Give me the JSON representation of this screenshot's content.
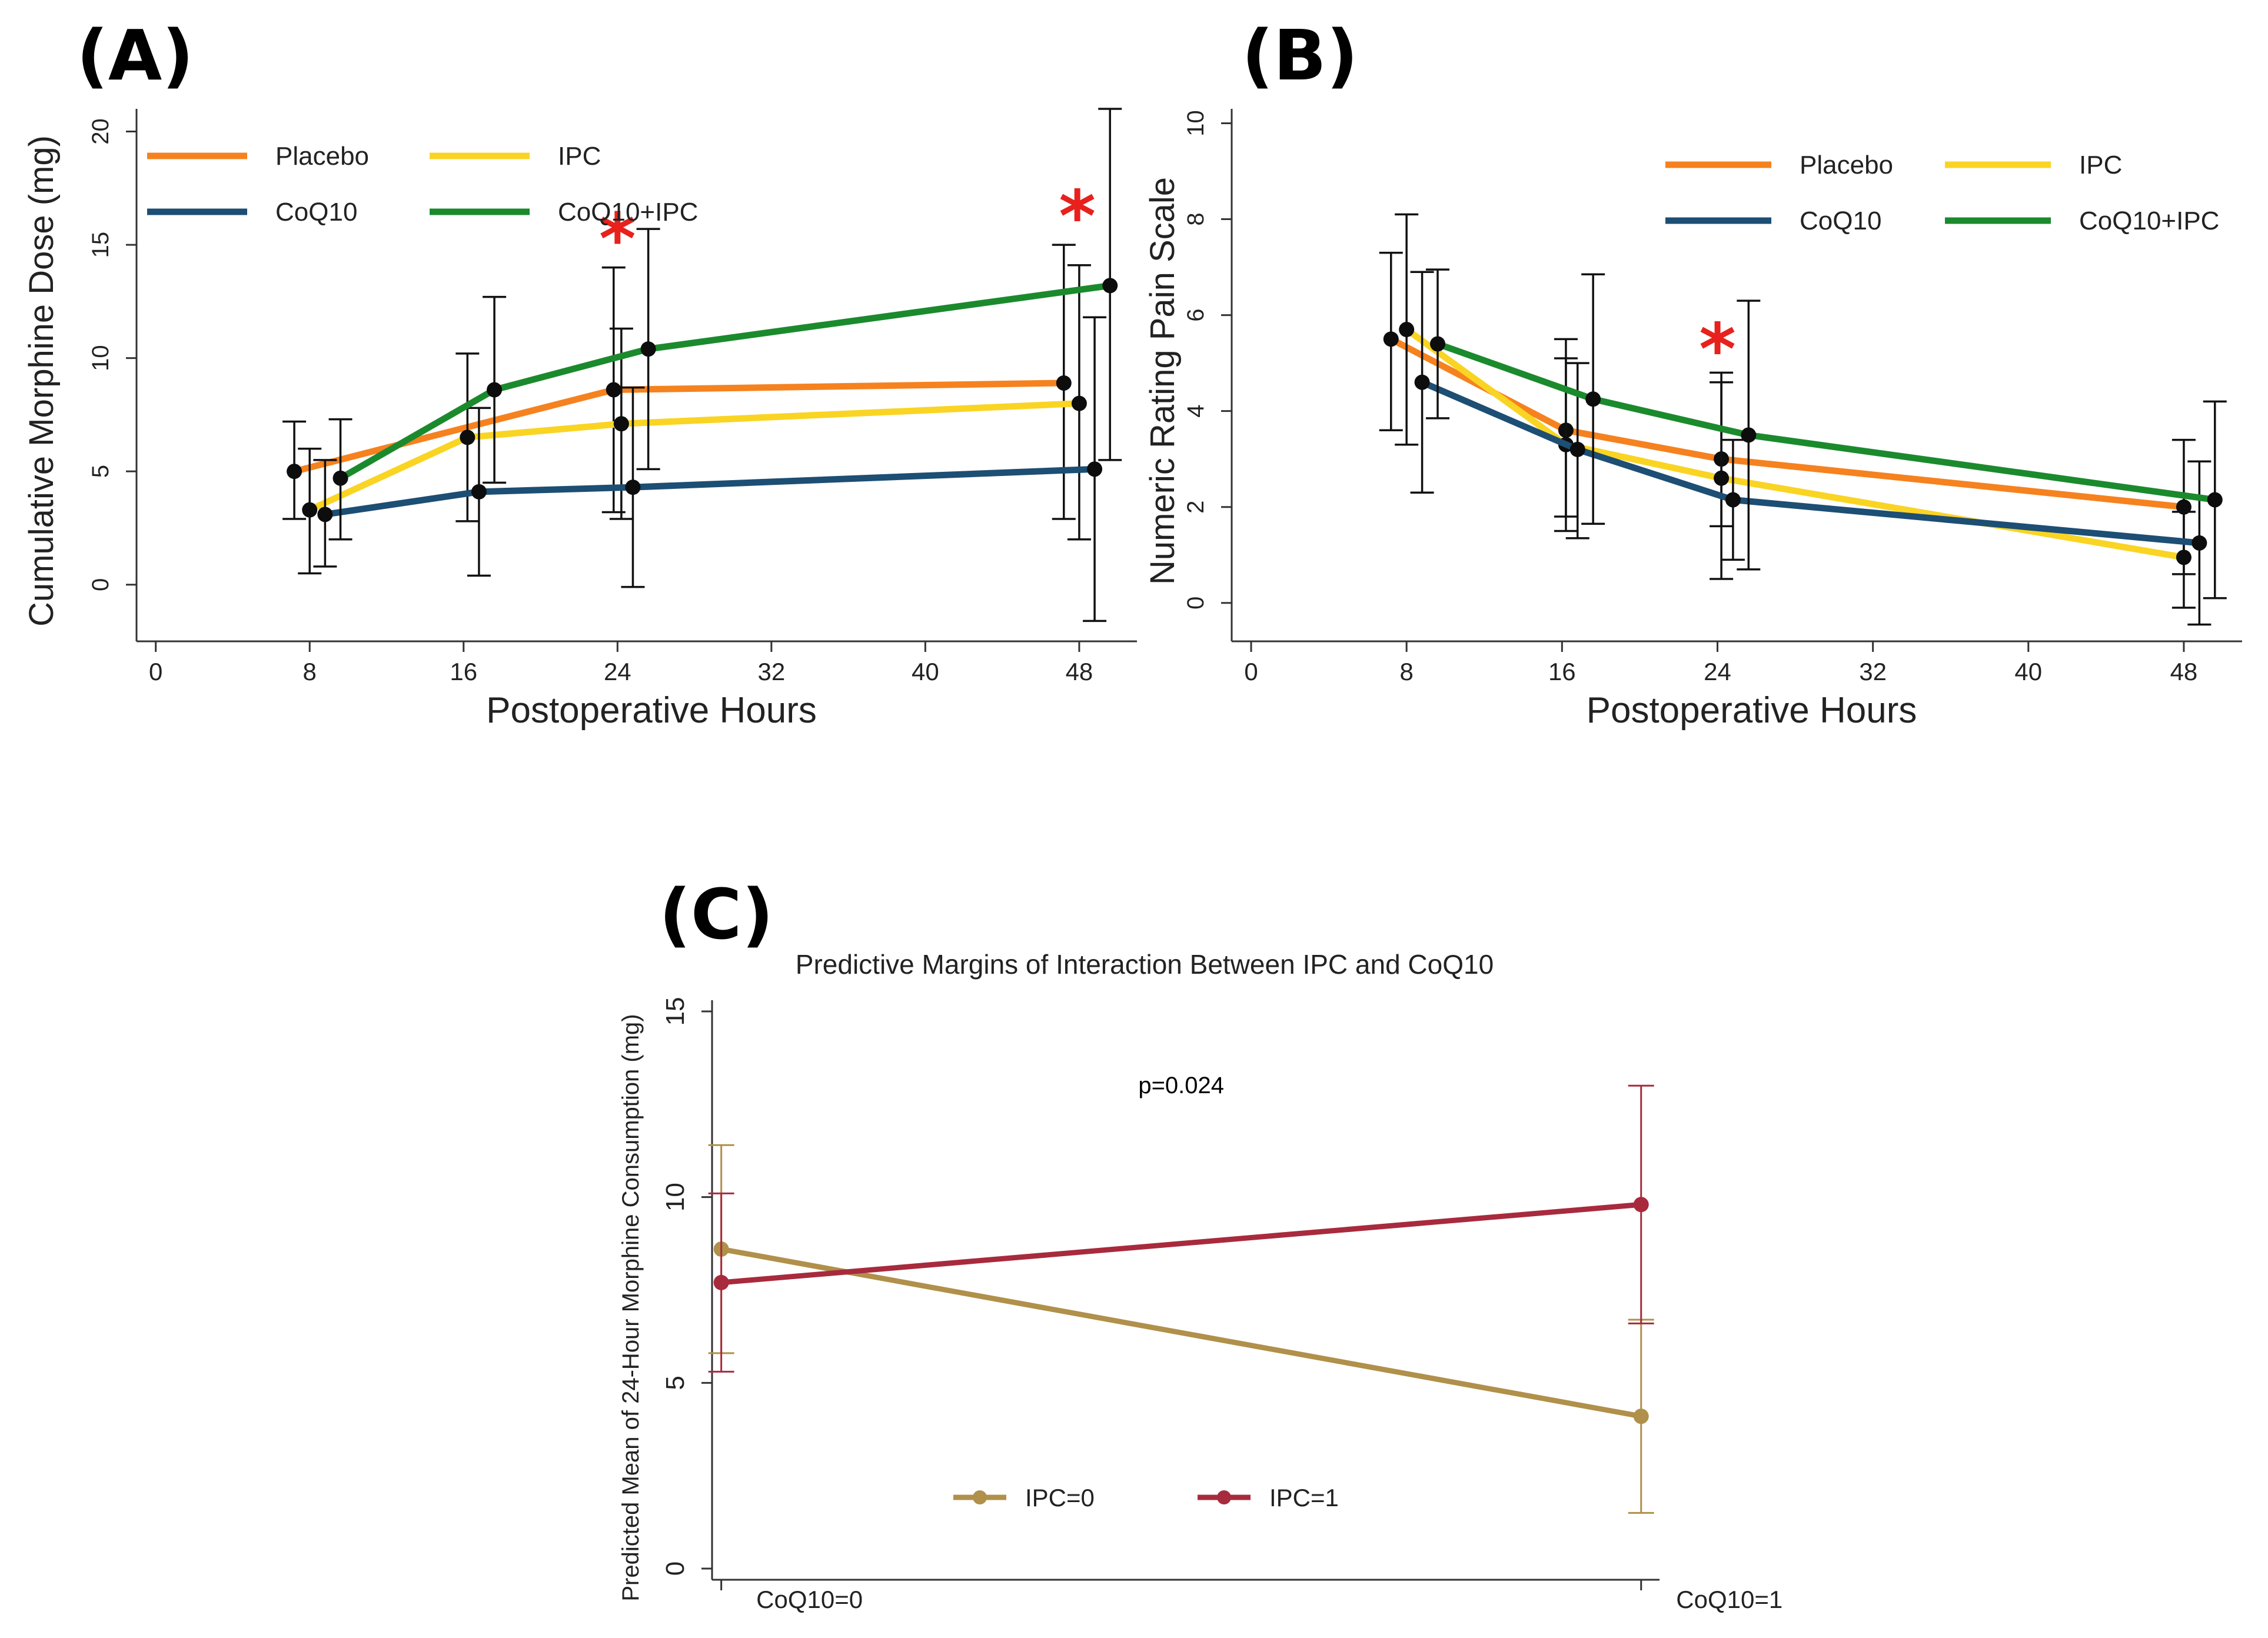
{
  "chart_data": [
    {
      "panel": "(A)",
      "type": "line",
      "title": "",
      "xlabel": "Postoperative Hours",
      "ylabel": "Cumulative Morphine Dose (mg)",
      "xlim": [
        -1,
        51
      ],
      "ylim": [
        -2.5,
        21
      ],
      "xticks": [
        0,
        8,
        16,
        24,
        32,
        40,
        48
      ],
      "xtick_labels": [
        "0",
        "8",
        "16",
        "24",
        "32",
        "40",
        "48"
      ],
      "yticks": [
        0,
        5,
        10,
        15,
        20
      ],
      "ytick_labels": [
        "0",
        "5",
        "10",
        "15",
        "20"
      ],
      "legend": "top-left",
      "legend_columns": 2,
      "series": [
        {
          "name": "Placebo",
          "color": "#f5821f",
          "x": [
            7.2,
            23.8,
            47.2
          ],
          "y": [
            5.0,
            8.6,
            8.9
          ],
          "err_low": [
            2.9,
            3.2,
            2.9
          ],
          "err_high": [
            7.2,
            14.0,
            15.0
          ]
        },
        {
          "name": "IPC",
          "color": "#f9d423",
          "x": [
            8.0,
            16.2,
            24.2,
            48.0
          ],
          "y": [
            3.3,
            6.5,
            7.1,
            8.0
          ],
          "err_low": [
            0.5,
            2.8,
            2.9,
            2.0
          ],
          "err_high": [
            6.0,
            10.2,
            11.3,
            14.1
          ]
        },
        {
          "name": "CoQ10",
          "color": "#1d4e74",
          "x": [
            8.8,
            16.8,
            24.8,
            48.8
          ],
          "y": [
            3.1,
            4.1,
            4.3,
            5.1
          ],
          "err_low": [
            0.8,
            0.4,
            -0.1,
            -1.6
          ],
          "err_high": [
            5.5,
            7.8,
            8.7,
            11.8
          ]
        },
        {
          "name": "CoQ10+IPC",
          "color": "#1b8a2d",
          "x": [
            9.6,
            17.6,
            25.6,
            49.6
          ],
          "y": [
            4.7,
            8.6,
            10.4,
            13.2
          ],
          "err_low": [
            2.0,
            4.5,
            5.1,
            5.5
          ],
          "err_high": [
            7.3,
            12.7,
            15.7,
            21.0
          ]
        }
      ],
      "annotations": [
        {
          "text": "*",
          "x": 24.0,
          "y": 15.6,
          "color": "#e8211c"
        },
        {
          "text": "*",
          "x": 47.9,
          "y": 16.6,
          "color": "#e8211c"
        }
      ]
    },
    {
      "panel": "(B)",
      "type": "line",
      "title": "",
      "xlabel": "Postoperative Hours",
      "ylabel": "Numeric Rating Pain Scale",
      "xlim": [
        -1,
        51
      ],
      "ylim": [
        -0.8,
        10.3
      ],
      "xticks": [
        0,
        8,
        16,
        24,
        32,
        40,
        48
      ],
      "xtick_labels": [
        "0",
        "8",
        "16",
        "24",
        "32",
        "40",
        "48"
      ],
      "yticks": [
        0,
        2,
        4,
        6,
        8,
        10
      ],
      "ytick_labels": [
        "0",
        "2",
        "4",
        "6",
        "8",
        "10"
      ],
      "legend": "top-right",
      "legend_columns": 2,
      "series": [
        {
          "name": "Placebo",
          "color": "#f5821f",
          "x": [
            7.2,
            16.2,
            24.2,
            48.0
          ],
          "y": [
            5.5,
            3.6,
            3.0,
            2.0
          ],
          "err_low": [
            3.6,
            1.8,
            1.6,
            0.6
          ],
          "err_high": [
            7.3,
            5.5,
            4.6,
            3.4
          ]
        },
        {
          "name": "IPC",
          "color": "#f9d423",
          "x": [
            8.0,
            16.2,
            24.2,
            48.0
          ],
          "y": [
            5.7,
            3.3,
            2.6,
            0.95
          ],
          "err_low": [
            3.3,
            1.5,
            0.5,
            -0.1
          ],
          "err_high": [
            8.1,
            5.1,
            4.8,
            1.9
          ]
        },
        {
          "name": "CoQ10",
          "color": "#1d4e74",
          "x": [
            8.8,
            16.8,
            24.8,
            48.8
          ],
          "y": [
            4.6,
            3.2,
            2.15,
            1.25
          ],
          "err_low": [
            2.3,
            1.35,
            0.9,
            -0.45
          ],
          "err_high": [
            6.9,
            5.0,
            3.4,
            2.95
          ]
        },
        {
          "name": "CoQ10+IPC",
          "color": "#1b8a2d",
          "x": [
            9.6,
            17.6,
            25.6,
            49.6
          ],
          "y": [
            5.4,
            4.25,
            3.5,
            2.15
          ],
          "err_low": [
            3.85,
            1.65,
            0.7,
            0.1
          ],
          "err_high": [
            6.95,
            6.85,
            6.3,
            4.2
          ]
        }
      ],
      "annotations": [
        {
          "text": "*",
          "x": 24.0,
          "y": 5.45,
          "color": "#e8211c"
        }
      ]
    },
    {
      "panel": "(C)",
      "type": "line",
      "title": "Predictive Margins of Interaction Between IPC and CoQ10",
      "xlabel": "",
      "ylabel": "Predicted Mean of 24-Hour Morphine Consumption (mg)",
      "xlim": [
        -0.01,
        1.02
      ],
      "ylim": [
        -0.3,
        15.3
      ],
      "categories": [
        "CoQ10=0",
        "CoQ10=1"
      ],
      "yticks": [
        0,
        5,
        10,
        15
      ],
      "ytick_labels": [
        "0",
        "5",
        "10",
        "15"
      ],
      "legend": "bottom-center",
      "legend_columns": 2,
      "series": [
        {
          "name": "IPC=0",
          "color": "#b0904a",
          "x": [
            0,
            1
          ],
          "y": [
            8.6,
            4.1
          ],
          "err_low": [
            5.8,
            1.5
          ],
          "err_high": [
            11.4,
            6.7
          ]
        },
        {
          "name": "IPC=1",
          "color": "#a82a3d",
          "x": [
            0,
            1
          ],
          "y": [
            7.7,
            9.8
          ],
          "err_low": [
            5.3,
            6.6
          ],
          "err_high": [
            10.1,
            13.0
          ]
        }
      ],
      "annotations": [
        {
          "text": "p=0.024",
          "x": 0.5,
          "y": 12.8,
          "color": "#000000"
        }
      ]
    }
  ]
}
